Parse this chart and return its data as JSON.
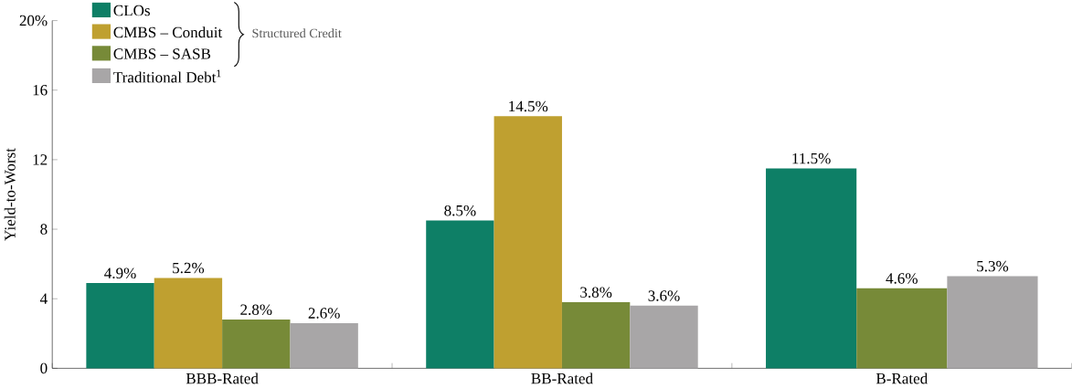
{
  "chart_data": {
    "type": "bar",
    "ylabel": "Yield-to-Worst",
    "categories": [
      "BBB-Rated",
      "BB-Rated",
      "B-Rated"
    ],
    "series": [
      {
        "name": "CLOs",
        "color": "#0e7f66",
        "values": [
          4.9,
          8.5,
          11.5
        ],
        "value_labels": [
          "4.9%",
          "8.5%",
          "11.5%"
        ]
      },
      {
        "name": "CMBS – Conduit",
        "color": "#bfa030",
        "values": [
          5.2,
          14.5,
          null
        ],
        "value_labels": [
          "5.2%",
          "14.5%",
          null
        ]
      },
      {
        "name": "CMBS – SASB",
        "color": "#778a38",
        "values": [
          2.8,
          3.8,
          4.6
        ],
        "value_labels": [
          "2.8%",
          "3.8%",
          "4.6%"
        ]
      },
      {
        "name": "Traditional Debt$^{1}$",
        "color": "#a8a6a7",
        "values": [
          2.6,
          3.6,
          5.3
        ],
        "value_labels": [
          "2.6%",
          "3.6%",
          "5.3%"
        ]
      }
    ],
    "ylim": [
      0,
      20
    ],
    "yticks": [
      0,
      4,
      8,
      12,
      16,
      {
        "value": 20,
        "label": "20%"
      }
    ],
    "grid": false,
    "legend": "top left",
    "annotations": [
      "Structured Credit"
    ]
  }
}
